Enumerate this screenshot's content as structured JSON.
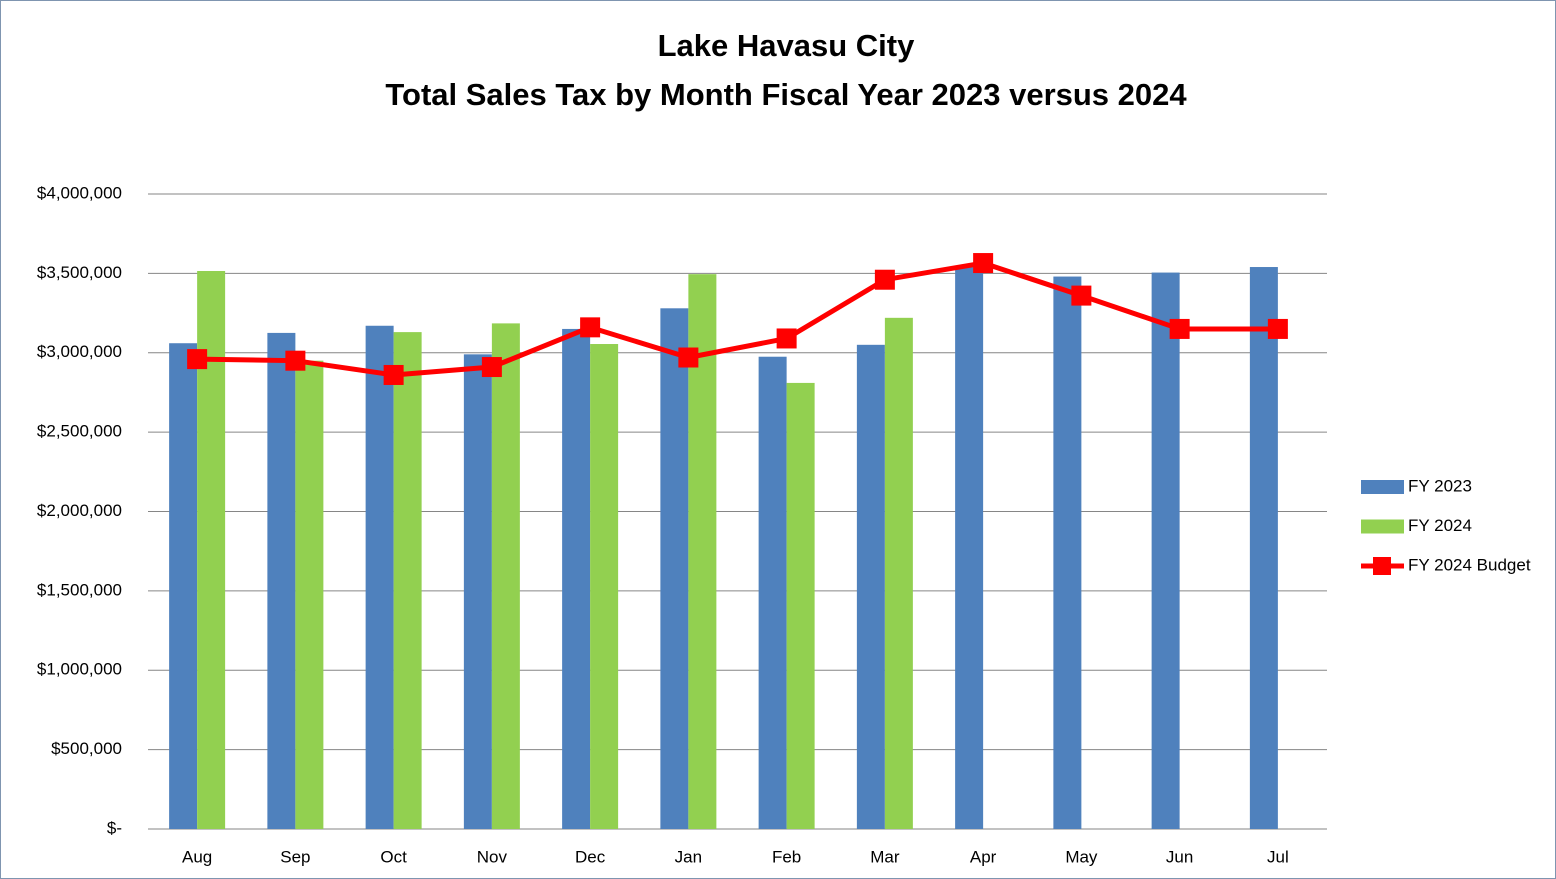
{
  "chart_data": {
    "type": "bar-line",
    "title": "Lake Havasu City",
    "subtitle": "Total Sales Tax by Month Fiscal Year 2023 versus 2024",
    "categories": [
      "Aug",
      "Sep",
      "Oct",
      "Nov",
      "Dec",
      "Jan",
      "Feb",
      "Mar",
      "Apr",
      "May",
      "Jun",
      "Jul"
    ],
    "series": [
      {
        "name": "FY 2023",
        "type": "bar",
        "color": "#4f81bd",
        "values": [
          3060000,
          3125000,
          3170000,
          2990000,
          3150000,
          3280000,
          2975000,
          3050000,
          3540000,
          3480000,
          3505000,
          3540000
        ]
      },
      {
        "name": "FY 2024",
        "type": "bar",
        "color": "#92d050",
        "values": [
          3515000,
          2950000,
          3130000,
          3185000,
          3055000,
          3495000,
          2810000,
          3220000,
          null,
          null,
          null,
          null
        ]
      },
      {
        "name": "FY 2024 Budget",
        "type": "line",
        "color": "#ff0000",
        "values": [
          2960000,
          2950000,
          2860000,
          2910000,
          3160000,
          2970000,
          3090000,
          3460000,
          3565000,
          3360000,
          3150000,
          3150000
        ]
      }
    ],
    "ylim": [
      0,
      4000000
    ],
    "yticks": [
      {
        "value": 0,
        "label": "$-"
      },
      {
        "value": 500000,
        "label": "$500,000"
      },
      {
        "value": 1000000,
        "label": "$1,000,000"
      },
      {
        "value": 1500000,
        "label": "$1,500,000"
      },
      {
        "value": 2000000,
        "label": "$2,000,000"
      },
      {
        "value": 2500000,
        "label": "$2,500,000"
      },
      {
        "value": 3000000,
        "label": "$3,000,000"
      },
      {
        "value": 3500000,
        "label": "$3,500,000"
      },
      {
        "value": 4000000,
        "label": "$4,000,000"
      }
    ],
    "grid": true,
    "legend": "right"
  }
}
